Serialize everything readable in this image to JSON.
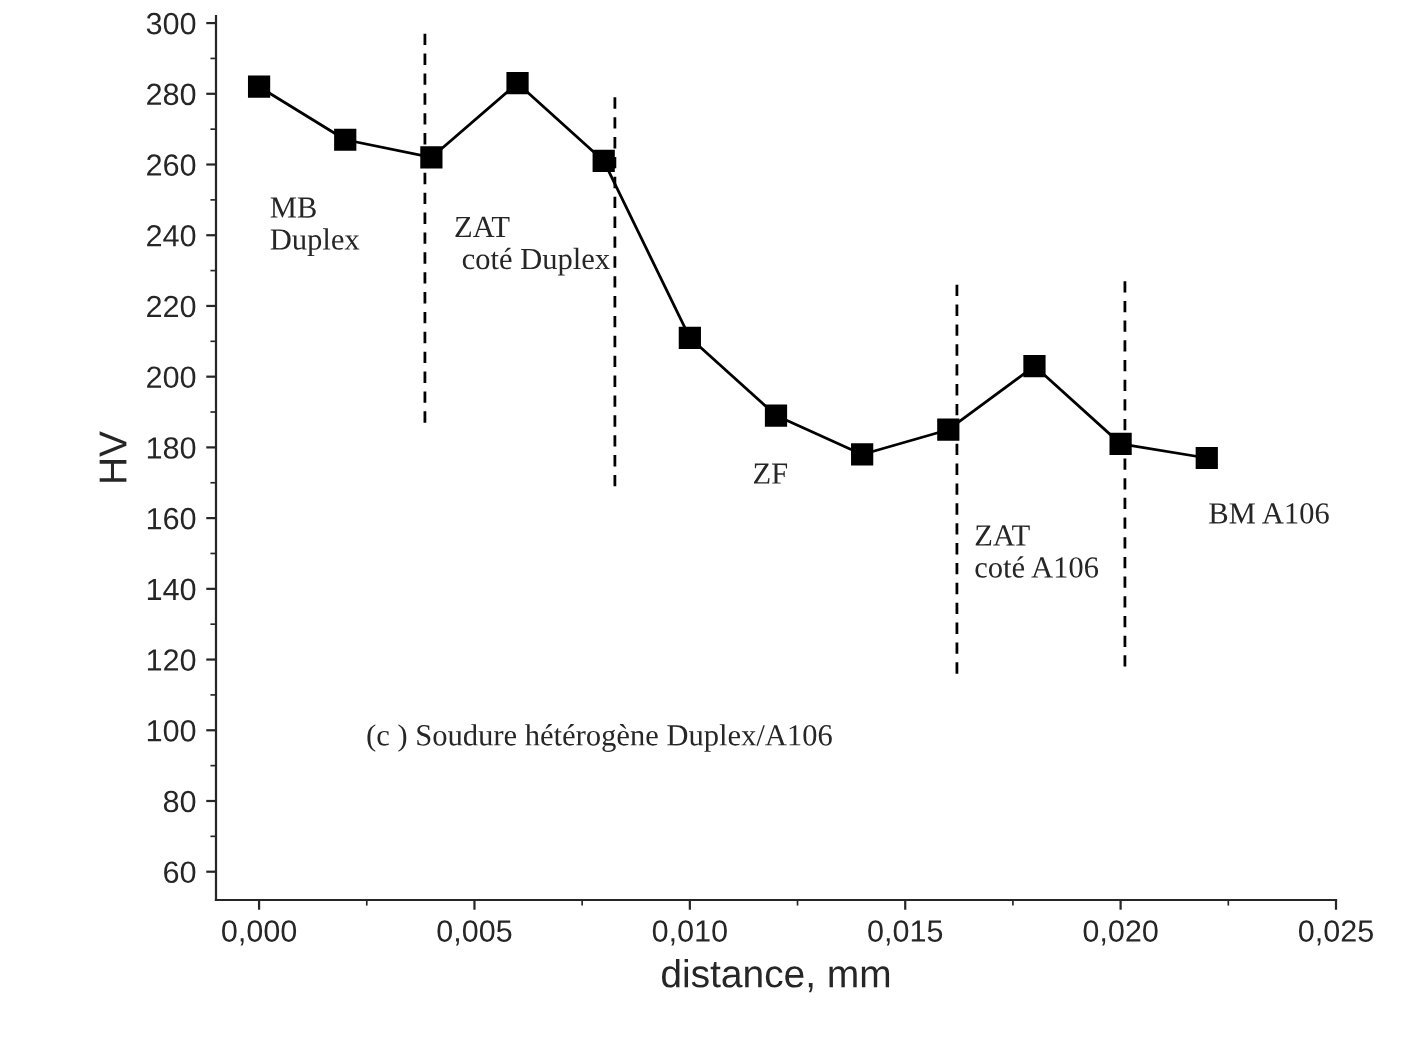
{
  "chart_data": {
    "type": "line",
    "xlabel": "distance, mm",
    "ylabel": "HV",
    "xlim": [
      -0.001,
      0.025
    ],
    "ylim": [
      52,
      302
    ],
    "xticks": [
      {
        "value": 0,
        "label": "0,000"
      },
      {
        "value": 0.005,
        "label": "0,005"
      },
      {
        "value": 0.01,
        "label": "0,010"
      },
      {
        "value": 0.015,
        "label": "0,015"
      },
      {
        "value": 0.02,
        "label": "0,020"
      },
      {
        "value": 0.025,
        "label": "0,025"
      }
    ],
    "yticks": [
      60,
      80,
      100,
      120,
      140,
      160,
      180,
      200,
      220,
      240,
      260,
      280,
      300
    ],
    "grid": false,
    "legend": false,
    "series": [
      {
        "color": "#000000",
        "marker": "square",
        "line_style": "solid",
        "x": [
          0,
          0.002,
          0.004,
          0.006,
          0.008,
          0.01,
          0.012,
          0.014,
          0.016,
          0.018,
          0.02,
          0.022
        ],
        "values": [
          282,
          267,
          262,
          283,
          261,
          211,
          189,
          178,
          185,
          203,
          181,
          177
        ]
      },
      {
        "color": "#000000",
        "marker": "none",
        "line_style": "dashed",
        "x": [
          0.00385,
          0.00385
        ],
        "values": [
          297,
          187
        ]
      },
      {
        "color": "#000000",
        "marker": "none",
        "line_style": "dashed",
        "x": [
          0.00826,
          0.00826
        ],
        "values": [
          279,
          169
        ]
      },
      {
        "color": "#000000",
        "marker": "none",
        "line_style": "dashed",
        "x": [
          0.0162,
          0.0162
        ],
        "values": [
          226,
          116
        ]
      },
      {
        "color": "#000000",
        "marker": "none",
        "line_style": "dashed",
        "x": [
          0.0201,
          0.0201
        ],
        "values": [
          227,
          118
        ]
      }
    ],
    "annotations": [
      "MB\nDuplex",
      "ZAT\n coté Duplex",
      "ZF",
      "ZAT\ncoté A106",
      "BM A106",
      "(c ) Soudure hétérogène Duplex/A106"
    ]
  }
}
